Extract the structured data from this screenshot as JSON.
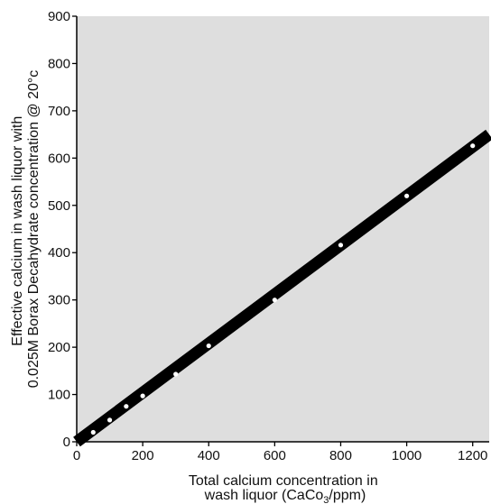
{
  "chart_data": {
    "type": "scatter",
    "title": "",
    "xlabel_lines": [
      "Total calcium concentration in",
      "wash liquor (CaCo",
      "3",
      "/ppm)"
    ],
    "ylabel_lines": [
      "Effective calcium in wash liquor with",
      "0.025M Borax Decahydrate concentration @ 20°c"
    ],
    "xlim": [
      0,
      1250
    ],
    "ylim": [
      0,
      900
    ],
    "x_ticks": [
      0,
      200,
      400,
      600,
      800,
      1000,
      1200
    ],
    "y_ticks": [
      0,
      100,
      200,
      300,
      400,
      500,
      600,
      700,
      800,
      900
    ],
    "grid": false,
    "series": [
      {
        "values_xy": [
          [
            50,
            20
          ],
          [
            100,
            46
          ],
          [
            150,
            75
          ],
          [
            200,
            97
          ],
          [
            300,
            143
          ],
          [
            400,
            203
          ],
          [
            600,
            300
          ],
          [
            800,
            416
          ],
          [
            1000,
            520
          ],
          [
            1200,
            626
          ]
        ]
      }
    ],
    "fit_line": {
      "x": [
        0,
        1250
      ],
      "y": [
        0,
        650
      ]
    },
    "colors": {
      "plot_background": "#dedede",
      "fit_line": "#000000",
      "points": "#ffffff",
      "axis": "#000000"
    }
  }
}
